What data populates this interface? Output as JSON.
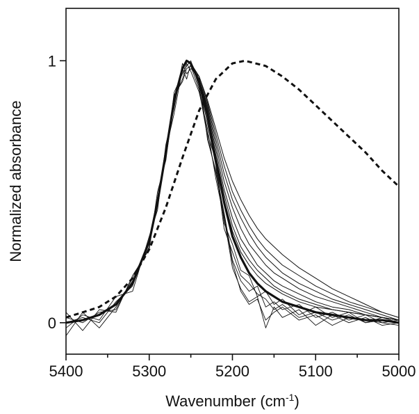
{
  "chart_data": {
    "type": "line",
    "xlabel": "Wavenumber",
    "xlabel_unit_base": "cm",
    "xlabel_unit_exp": "-1",
    "ylabel": "Normalized absorbance",
    "xlim": [
      5400,
      5000
    ],
    "ylim": [
      -0.12,
      1.2
    ],
    "x_reversed": true,
    "grid": false,
    "legend": "none",
    "x_ticks": [
      "5400",
      "5300",
      "5200",
      "5100",
      "5000"
    ],
    "y_ticks": [
      "0",
      "1"
    ],
    "reference_curve": {
      "style": "dashed",
      "x": [
        5400,
        5380,
        5360,
        5340,
        5320,
        5300,
        5280,
        5260,
        5240,
        5220,
        5200,
        5185,
        5160,
        5140,
        5120,
        5100,
        5080,
        5060,
        5040,
        5020,
        5000
      ],
      "values": [
        0.02,
        0.04,
        0.06,
        0.1,
        0.17,
        0.28,
        0.44,
        0.63,
        0.81,
        0.93,
        0.99,
        1.0,
        0.98,
        0.94,
        0.89,
        0.83,
        0.77,
        0.71,
        0.65,
        0.58,
        0.52
      ]
    },
    "thick_curve": {
      "x": [
        5400,
        5380,
        5360,
        5340,
        5320,
        5300,
        5290,
        5280,
        5270,
        5260,
        5255,
        5250,
        5240,
        5230,
        5220,
        5210,
        5200,
        5190,
        5180,
        5170,
        5160,
        5150,
        5140,
        5120,
        5100,
        5080,
        5060,
        5040,
        5020,
        5000
      ],
      "values": [
        0.0,
        0.01,
        0.03,
        0.07,
        0.15,
        0.31,
        0.46,
        0.65,
        0.85,
        0.97,
        1.0,
        0.99,
        0.92,
        0.79,
        0.62,
        0.46,
        0.33,
        0.25,
        0.19,
        0.15,
        0.12,
        0.1,
        0.08,
        0.06,
        0.04,
        0.03,
        0.02,
        0.01,
        0.01,
        0.0
      ]
    },
    "series": [
      {
        "values": [
          0.0,
          0.01,
          0.03,
          0.07,
          0.15,
          0.31,
          0.46,
          0.65,
          0.84,
          0.97,
          1.0,
          0.99,
          0.94,
          0.85,
          0.74,
          0.63,
          0.54,
          0.47,
          0.41,
          0.36,
          0.32,
          0.29,
          0.26,
          0.21,
          0.17,
          0.13,
          0.1,
          0.07,
          0.04,
          0.02
        ]
      },
      {
        "values": [
          0.0,
          0.01,
          0.03,
          0.07,
          0.15,
          0.31,
          0.46,
          0.65,
          0.84,
          0.97,
          1.0,
          0.99,
          0.94,
          0.84,
          0.72,
          0.6,
          0.5,
          0.43,
          0.37,
          0.32,
          0.28,
          0.25,
          0.22,
          0.18,
          0.14,
          0.11,
          0.08,
          0.06,
          0.04,
          0.02
        ]
      },
      {
        "values": [
          0.0,
          0.01,
          0.03,
          0.07,
          0.15,
          0.31,
          0.46,
          0.65,
          0.84,
          0.97,
          1.0,
          0.99,
          0.93,
          0.83,
          0.7,
          0.57,
          0.47,
          0.4,
          0.34,
          0.29,
          0.25,
          0.22,
          0.19,
          0.15,
          0.12,
          0.09,
          0.07,
          0.05,
          0.03,
          0.01
        ]
      },
      {
        "values": [
          0.0,
          0.01,
          0.03,
          0.07,
          0.15,
          0.31,
          0.46,
          0.65,
          0.84,
          0.97,
          1.0,
          0.99,
          0.93,
          0.82,
          0.68,
          0.54,
          0.44,
          0.36,
          0.3,
          0.26,
          0.22,
          0.19,
          0.17,
          0.13,
          0.1,
          0.08,
          0.06,
          0.04,
          0.02,
          0.01
        ]
      },
      {
        "values": [
          0.0,
          0.01,
          0.03,
          0.07,
          0.15,
          0.31,
          0.46,
          0.65,
          0.84,
          0.97,
          1.0,
          0.99,
          0.93,
          0.81,
          0.66,
          0.51,
          0.4,
          0.32,
          0.27,
          0.22,
          0.19,
          0.16,
          0.14,
          0.11,
          0.08,
          0.06,
          0.05,
          0.03,
          0.02,
          0.01
        ]
      },
      {
        "values": [
          0.0,
          0.01,
          0.03,
          0.07,
          0.15,
          0.31,
          0.46,
          0.65,
          0.84,
          0.97,
          1.0,
          0.99,
          0.92,
          0.8,
          0.64,
          0.49,
          0.37,
          0.29,
          0.24,
          0.2,
          0.17,
          0.14,
          0.12,
          0.09,
          0.07,
          0.05,
          0.04,
          0.03,
          0.02,
          0.01
        ]
      },
      {
        "values": [
          0.0,
          0.01,
          0.03,
          0.07,
          0.15,
          0.31,
          0.46,
          0.65,
          0.84,
          0.97,
          1.0,
          0.99,
          0.92,
          0.8,
          0.63,
          0.47,
          0.35,
          0.27,
          0.22,
          0.18,
          0.15,
          0.13,
          0.11,
          0.08,
          0.06,
          0.05,
          0.04,
          0.03,
          0.02,
          0.01
        ]
      },
      {
        "values": [
          0.02,
          0.0,
          0.04,
          0.05,
          0.17,
          0.3,
          0.48,
          0.63,
          0.88,
          0.95,
          0.98,
          1.0,
          0.9,
          0.72,
          0.62,
          0.38,
          0.3,
          0.2,
          0.18,
          0.1,
          0.12,
          0.07,
          0.09,
          0.03,
          0.06,
          0.02,
          0.04,
          0.0,
          0.02,
          0.0
        ]
      },
      {
        "values": [
          -0.02,
          0.03,
          0.01,
          0.1,
          0.12,
          0.33,
          0.43,
          0.68,
          0.82,
          0.99,
          0.95,
          0.97,
          0.94,
          0.7,
          0.58,
          0.42,
          0.24,
          0.16,
          0.12,
          0.14,
          0.06,
          0.08,
          0.05,
          0.07,
          0.02,
          0.04,
          0.01,
          0.03,
          0.0,
          0.01
        ]
      },
      {
        "values": [
          0.04,
          -0.03,
          0.05,
          0.04,
          0.18,
          0.28,
          0.5,
          0.62,
          0.86,
          0.93,
          0.99,
          0.96,
          0.88,
          0.74,
          0.55,
          0.4,
          0.21,
          0.13,
          0.08,
          0.1,
          -0.02,
          0.06,
          0.02,
          0.05,
          -0.01,
          0.03,
          0.0,
          0.02,
          -0.01,
          0.0
        ]
      },
      {
        "values": [
          0.0,
          0.02,
          0.0,
          0.08,
          0.14,
          0.32,
          0.45,
          0.66,
          0.8,
          0.97,
          0.93,
          0.99,
          0.91,
          0.76,
          0.6,
          0.36,
          0.27,
          0.18,
          0.15,
          0.11,
          0.09,
          0.05,
          0.07,
          0.02,
          0.04,
          0.01,
          0.03,
          0.0,
          0.01,
          0.0
        ]
      },
      {
        "values": [
          -0.05,
          0.04,
          -0.02,
          0.06,
          0.16,
          0.29,
          0.47,
          0.64,
          0.87,
          0.92,
          0.97,
          0.98,
          0.89,
          0.71,
          0.57,
          0.41,
          0.23,
          0.12,
          0.07,
          0.09,
          0.01,
          0.04,
          0.06,
          0.01,
          0.03,
          -0.01,
          0.02,
          0.01,
          0.0,
          -0.01
        ]
      }
    ]
  }
}
